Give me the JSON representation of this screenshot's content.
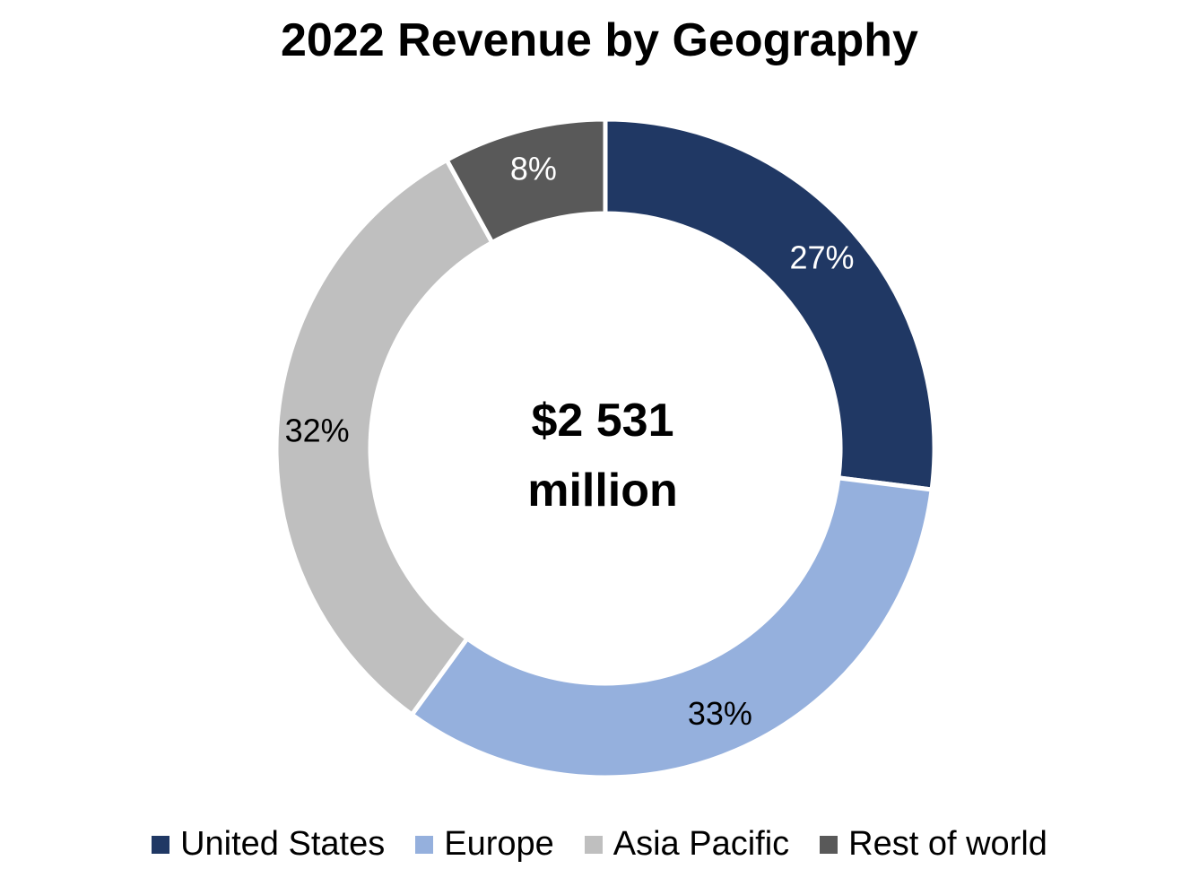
{
  "chart_data": {
    "type": "pie",
    "title": "2022 Revenue by Geography",
    "center_text": [
      "$2 531",
      "million"
    ],
    "legend_position": "bottom",
    "slices": [
      {
        "name": "United States",
        "value": 27,
        "label": "27%",
        "color": "#203864",
        "label_color": "#ffffff"
      },
      {
        "name": "Europe",
        "value": 33,
        "label": "33%",
        "color": "#95b0dd",
        "label_color": "#000000"
      },
      {
        "name": "Asia Pacific",
        "value": 32,
        "label": "32%",
        "color": "#bfbfbf",
        "label_color": "#000000"
      },
      {
        "name": "Rest of world",
        "value": 8,
        "label": "8%",
        "color": "#595959",
        "label_color": "#ffffff"
      }
    ]
  }
}
